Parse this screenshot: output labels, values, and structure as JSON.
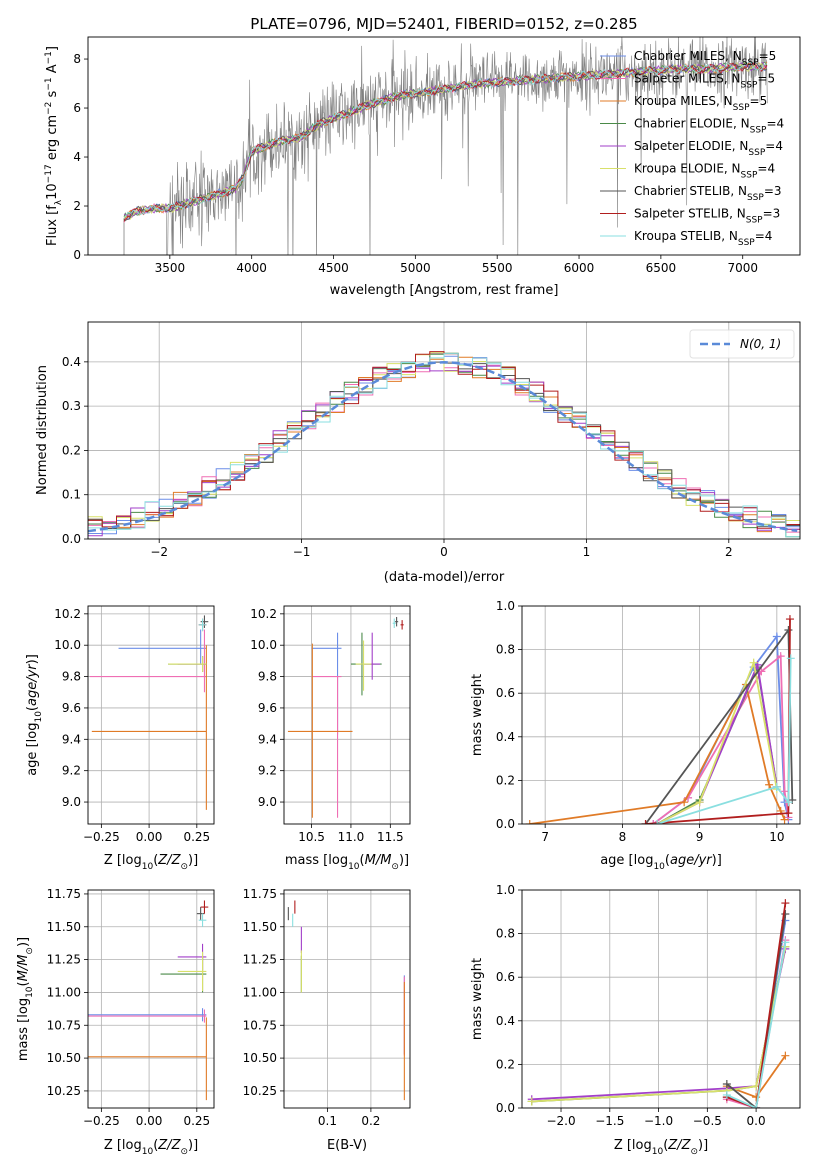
{
  "figure": {
    "title": "PLATE=0796, MJD=52401, FIBERID=0152, z=0.285"
  },
  "colors": {
    "chabrier_miles": "#6c8ee8",
    "salpeter_miles": "#ef6fb4",
    "kroupa_miles": "#e07b27",
    "chabrier_elodie": "#4a8a48",
    "salpeter_elodie": "#a23fc9",
    "kroupa_elodie": "#d8e06a",
    "chabrier_stelib": "#555555",
    "salpeter_stelib": "#b11e1e",
    "kroupa_stelib": "#8adfe0",
    "data_spectrum": "#808080",
    "normal_curve": "#5a8ad8",
    "grid": "#b0b0b0"
  },
  "legend_entries": [
    {
      "label": "Chabrier MILES, N",
      "sub": "SSP",
      "tail": "=5",
      "color_key": "chabrier_miles"
    },
    {
      "label": "Salpeter MILES, N",
      "sub": "SSP",
      "tail": "=5",
      "color_key": "salpeter_miles"
    },
    {
      "label": "Kroupa MILES, N",
      "sub": "SSP",
      "tail": "=5",
      "color_key": "kroupa_miles"
    },
    {
      "label": "Chabrier ELODIE, N",
      "sub": "SSP",
      "tail": "=4",
      "color_key": "chabrier_elodie"
    },
    {
      "label": "Salpeter ELODIE, N",
      "sub": "SSP",
      "tail": "=4",
      "color_key": "salpeter_elodie"
    },
    {
      "label": "Kroupa ELODIE, N",
      "sub": "SSP",
      "tail": "=4",
      "color_key": "kroupa_elodie"
    },
    {
      "label": "Chabrier STELIB, N",
      "sub": "SSP",
      "tail": "=3",
      "color_key": "chabrier_stelib"
    },
    {
      "label": "Salpeter STELIB, N",
      "sub": "SSP",
      "tail": "=3",
      "color_key": "salpeter_stelib"
    },
    {
      "label": "Kroupa STELIB, N",
      "sub": "SSP",
      "tail": "=4",
      "color_key": "kroupa_stelib"
    }
  ],
  "chart_data": [
    {
      "id": "spectrum",
      "type": "line",
      "xlabel": "wavelength [Angstrom, rest frame]",
      "ylabel": "Flux [f_λ 10^-17 erg cm^-2 s^-1 A^-1]",
      "xlim": [
        3000,
        7350
      ],
      "ylim": [
        0,
        8.9
      ],
      "xticks": [
        3500,
        4000,
        4500,
        5000,
        5500,
        6000,
        6500,
        7000
      ],
      "yticks": [
        0,
        2,
        4,
        6,
        8
      ],
      "grid": false,
      "legend_position": "upper-right",
      "model_continuum": {
        "x": [
          3220,
          3300,
          3400,
          3500,
          3600,
          3700,
          3800,
          3900,
          3950,
          4000,
          4100,
          4200,
          4300,
          4400,
          4500,
          4600,
          4700,
          4800,
          4900,
          5000,
          5200,
          5400,
          5600,
          5800,
          6000,
          6200,
          6400,
          6600,
          6800,
          7000,
          7150
        ],
        "y": [
          1.5,
          1.8,
          1.9,
          1.9,
          2.1,
          2.3,
          2.5,
          2.7,
          3.2,
          4.2,
          4.5,
          4.7,
          4.8,
          5.3,
          5.6,
          5.8,
          6.1,
          6.3,
          6.5,
          6.6,
          6.8,
          7.0,
          7.1,
          7.2,
          7.3,
          7.4,
          7.5,
          7.6,
          7.6,
          7.7,
          7.7
        ]
      },
      "data_start_wavelength": 3220
    },
    {
      "id": "residuals",
      "type": "histogram",
      "xlabel": "(data-model)/error",
      "ylabel": "Normed distribution",
      "xlim": [
        -2.5,
        2.5
      ],
      "ylim": [
        0,
        0.49
      ],
      "xticks": [
        -2,
        -1,
        0,
        1,
        2
      ],
      "yticks": [
        0.0,
        0.1,
        0.2,
        0.3,
        0.4
      ],
      "grid": true,
      "legend_position": "upper-right",
      "normal_label": "N(0, 1)",
      "bin_width": 0.1,
      "bins_start": -2.5,
      "bins_count": 50
    },
    {
      "id": "age_vs_Z",
      "type": "errorbar",
      "xlabel": "Z [log10(Z/Z_sun)]",
      "ylabel": "age [log10(age/yr)]",
      "xlim": [
        -0.32,
        0.34
      ],
      "ylim": [
        8.86,
        10.25
      ],
      "xticks": [
        -0.25,
        0.0,
        0.25
      ],
      "yticks": [
        9.0,
        9.2,
        9.4,
        9.6,
        9.8,
        10.0,
        10.2
      ],
      "grid": true,
      "points": [
        {
          "color_key": "chabrier_miles",
          "x": 0.27,
          "y": 9.98,
          "xerr": [
            0.43,
            0.03
          ],
          "yerr": [
            0.1,
            0.12
          ]
        },
        {
          "color_key": "salpeter_miles",
          "x": 0.29,
          "y": 9.8,
          "xerr": [
            0.6,
            0.01
          ],
          "yerr": [
            0.1,
            0.3
          ]
        },
        {
          "color_key": "kroupa_miles",
          "x": 0.3,
          "y": 9.45,
          "xerr": [
            0.6,
            0.0
          ],
          "yerr": [
            0.5,
            0.55
          ]
        },
        {
          "color_key": "chabrier_elodie",
          "x": 0.28,
          "y": 9.88,
          "xerr": [
            0.18,
            0.02
          ],
          "yerr": [
            0.05,
            0.05
          ]
        },
        {
          "color_key": "salpeter_elodie",
          "x": 0.28,
          "y": 9.88,
          "xerr": [
            0.13,
            0.02
          ],
          "yerr": [
            0.05,
            0.05
          ]
        },
        {
          "color_key": "kroupa_elodie",
          "x": 0.28,
          "y": 9.88,
          "xerr": [
            0.18,
            0.02
          ],
          "yerr": [
            0.05,
            0.05
          ]
        },
        {
          "color_key": "chabrier_stelib",
          "x": 0.29,
          "y": 10.15,
          "xerr": [
            0.02,
            0.02
          ],
          "yerr": [
            0.04,
            0.04
          ]
        },
        {
          "color_key": "salpeter_stelib",
          "x": 0.28,
          "y": 10.13,
          "xerr": [
            0.02,
            0.02
          ],
          "yerr": [
            0.04,
            0.04
          ]
        },
        {
          "color_key": "kroupa_stelib",
          "x": 0.28,
          "y": 10.13,
          "xerr": [
            0.02,
            0.02
          ],
          "yerr": [
            0.04,
            0.04
          ]
        }
      ]
    },
    {
      "id": "age_vs_mass",
      "type": "errorbar",
      "xlabel": "mass [log10(M/M_sun)]",
      "ylabel": "",
      "xlim": [
        10.15,
        11.75
      ],
      "ylim": [
        8.86,
        10.25
      ],
      "xticks": [
        10.5,
        11.0,
        11.5
      ],
      "yticks": [
        9.0,
        9.2,
        9.4,
        9.6,
        9.8,
        10.0,
        10.2
      ],
      "grid": true,
      "points": [
        {
          "color_key": "chabrier_miles",
          "x": 10.83,
          "y": 9.98,
          "xerr": [
            0.33,
            0.05
          ],
          "yerr": [
            0.55,
            0.1
          ]
        },
        {
          "color_key": "salpeter_miles",
          "x": 10.83,
          "y": 9.8,
          "xerr": [
            0.33,
            0.05
          ],
          "yerr": [
            0.9,
            0.0
          ]
        },
        {
          "color_key": "kroupa_miles",
          "x": 10.51,
          "y": 9.45,
          "xerr": [
            0.31,
            0.51
          ],
          "yerr": [
            0.55,
            0.56
          ]
        },
        {
          "color_key": "chabrier_elodie",
          "x": 11.14,
          "y": 9.88,
          "xerr": [
            0.14,
            0.25
          ],
          "yerr": [
            0.2,
            0.2
          ]
        },
        {
          "color_key": "salpeter_elodie",
          "x": 11.27,
          "y": 9.88,
          "xerr": [
            0.1,
            0.1
          ],
          "yerr": [
            0.1,
            0.2
          ]
        },
        {
          "color_key": "kroupa_elodie",
          "x": 11.16,
          "y": 9.88,
          "xerr": [
            0.1,
            0.1
          ],
          "yerr": [
            0.17,
            0.15
          ]
        },
        {
          "color_key": "chabrier_stelib",
          "x": 11.58,
          "y": 10.15,
          "xerr": [
            0.02,
            0.02
          ],
          "yerr": [
            0.03,
            0.03
          ]
        },
        {
          "color_key": "salpeter_stelib",
          "x": 11.65,
          "y": 10.13,
          "xerr": [
            0.02,
            0.02
          ],
          "yerr": [
            0.03,
            0.03
          ]
        },
        {
          "color_key": "kroupa_stelib",
          "x": 11.55,
          "y": 10.14,
          "xerr": [
            0.02,
            0.02
          ],
          "yerr": [
            0.03,
            0.03
          ]
        }
      ]
    },
    {
      "id": "mass_weight_vs_age",
      "type": "line",
      "xlabel": "age [log10(age/yr)]",
      "ylabel": "mass weight",
      "xlim": [
        6.7,
        10.3
      ],
      "ylim": [
        0,
        1.0
      ],
      "xticks": [
        7,
        8,
        9,
        10
      ],
      "yticks": [
        0.0,
        0.2,
        0.4,
        0.6,
        0.8,
        1.0
      ],
      "grid": true,
      "series": [
        {
          "color_key": "chabrier_miles",
          "x": [
            8.4,
            8.85,
            9.7,
            10.0,
            10.1,
            10.15
          ],
          "y": [
            0.0,
            0.12,
            0.72,
            0.86,
            0.1,
            0.02
          ]
        },
        {
          "color_key": "salpeter_miles",
          "x": [
            8.4,
            8.85,
            9.8,
            10.05,
            10.1,
            10.15
          ],
          "y": [
            0.0,
            0.12,
            0.7,
            0.77,
            0.15,
            0.03
          ]
        },
        {
          "color_key": "kroupa_miles",
          "x": [
            6.8,
            8.8,
            9.6,
            9.9,
            10.05,
            10.1
          ],
          "y": [
            0.0,
            0.1,
            0.64,
            0.18,
            0.06,
            0.02
          ]
        },
        {
          "color_key": "chabrier_elodie",
          "x": [
            8.45,
            9.0,
            9.75,
            10.0
          ],
          "y": [
            0.0,
            0.11,
            0.72,
            0.17
          ]
        },
        {
          "color_key": "salpeter_elodie",
          "x": [
            8.45,
            9.0,
            9.75,
            10.0
          ],
          "y": [
            0.0,
            0.1,
            0.73,
            0.17
          ]
        },
        {
          "color_key": "kroupa_elodie",
          "x": [
            8.45,
            9.0,
            9.7,
            10.0
          ],
          "y": [
            0.0,
            0.1,
            0.74,
            0.16
          ]
        },
        {
          "color_key": "chabrier_stelib",
          "x": [
            8.3,
            10.15,
            10.2
          ],
          "y": [
            0.0,
            0.89,
            0.11
          ]
        },
        {
          "color_key": "salpeter_stelib",
          "x": [
            8.3,
            10.15,
            10.17
          ],
          "y": [
            0.0,
            0.05,
            0.94
          ]
        },
        {
          "color_key": "kroupa_stelib",
          "x": [
            8.45,
            10.0,
            10.15,
            10.18
          ],
          "y": [
            0.0,
            0.17,
            0.1,
            0.76
          ]
        }
      ]
    },
    {
      "id": "mass_vs_Z",
      "type": "errorbar",
      "xlabel": "Z [log10(Z/Z_sun)]",
      "ylabel": "mass [log10(M/M_sun)]",
      "xlim": [
        -0.32,
        0.34
      ],
      "ylim": [
        10.12,
        11.78
      ],
      "xticks": [
        -0.25,
        0.0,
        0.25
      ],
      "yticks": [
        10.25,
        10.5,
        10.75,
        11.0,
        11.25,
        11.5,
        11.75
      ],
      "grid": true,
      "points": [
        {
          "color_key": "chabrier_miles",
          "x": 0.28,
          "y": 10.83,
          "xerr": [
            0.6,
            0.02
          ],
          "yerr": [
            0.05,
            0.05
          ]
        },
        {
          "color_key": "salpeter_miles",
          "x": 0.29,
          "y": 10.82,
          "xerr": [
            0.61,
            0.01
          ],
          "yerr": [
            0.05,
            0.05
          ]
        },
        {
          "color_key": "kroupa_miles",
          "x": 0.3,
          "y": 10.51,
          "xerr": [
            0.62,
            0.0
          ],
          "yerr": [
            0.33,
            0.3
          ]
        },
        {
          "color_key": "chabrier_elodie",
          "x": 0.28,
          "y": 11.14,
          "xerr": [
            0.22,
            0.02
          ],
          "yerr": [
            0.14,
            0.13
          ]
        },
        {
          "color_key": "salpeter_elodie",
          "x": 0.28,
          "y": 11.27,
          "xerr": [
            0.13,
            0.02
          ],
          "yerr": [
            0.1,
            0.1
          ]
        },
        {
          "color_key": "kroupa_elodie",
          "x": 0.28,
          "y": 11.16,
          "xerr": [
            0.13,
            0.02
          ],
          "yerr": [
            0.15,
            0.15
          ]
        },
        {
          "color_key": "chabrier_stelib",
          "x": 0.27,
          "y": 11.6,
          "xerr": [
            0.02,
            0.02
          ],
          "yerr": [
            0.05,
            0.05
          ]
        },
        {
          "color_key": "salpeter_stelib",
          "x": 0.29,
          "y": 11.65,
          "xerr": [
            0.02,
            0.02
          ],
          "yerr": [
            0.05,
            0.05
          ]
        },
        {
          "color_key": "kroupa_stelib",
          "x": 0.28,
          "y": 11.55,
          "xerr": [
            0.02,
            0.02
          ],
          "yerr": [
            0.05,
            0.05
          ]
        }
      ]
    },
    {
      "id": "mass_vs_ebv",
      "type": "errorbar",
      "xlabel": "E(B-V)",
      "ylabel": "",
      "xlim": [
        0.0,
        0.29
      ],
      "ylim": [
        10.12,
        11.78
      ],
      "xticks": [
        0.1,
        0.2
      ],
      "yticks": [
        10.25,
        10.5,
        10.75,
        11.0,
        11.25,
        11.5,
        11.75
      ],
      "grid": true,
      "points": [
        {
          "color_key": "chabrier_miles",
          "x": 0.277,
          "y": 10.83,
          "xerr": [
            0.0,
            0.0
          ],
          "yerr": [
            0.3,
            0.3
          ]
        },
        {
          "color_key": "salpeter_miles",
          "x": 0.277,
          "y": 10.82,
          "xerr": [
            0.0,
            0.0
          ],
          "yerr": [
            0.3,
            0.3
          ]
        },
        {
          "color_key": "kroupa_miles",
          "x": 0.277,
          "y": 10.63,
          "xerr": [
            0.0,
            0.0
          ],
          "yerr": [
            0.45,
            0.45
          ]
        },
        {
          "color_key": "chabrier_elodie",
          "x": 0.04,
          "y": 11.14,
          "xerr": [
            0.0,
            0.0
          ],
          "yerr": [
            0.14,
            0.14
          ]
        },
        {
          "color_key": "salpeter_elodie",
          "x": 0.04,
          "y": 11.4,
          "xerr": [
            0.0,
            0.0
          ],
          "yerr": [
            0.1,
            0.1
          ]
        },
        {
          "color_key": "kroupa_elodie",
          "x": 0.04,
          "y": 11.16,
          "xerr": [
            0.0,
            0.0
          ],
          "yerr": [
            0.16,
            0.16
          ]
        },
        {
          "color_key": "chabrier_stelib",
          "x": 0.01,
          "y": 11.6,
          "xerr": [
            0.0,
            0.0
          ],
          "yerr": [
            0.05,
            0.05
          ]
        },
        {
          "color_key": "salpeter_stelib",
          "x": 0.025,
          "y": 11.65,
          "xerr": [
            0.0,
            0.0
          ],
          "yerr": [
            0.05,
            0.05
          ]
        },
        {
          "color_key": "kroupa_stelib",
          "x": 0.02,
          "y": 11.55,
          "xerr": [
            0.0,
            0.0
          ],
          "yerr": [
            0.05,
            0.05
          ]
        }
      ]
    },
    {
      "id": "mass_weight_vs_Z",
      "type": "line",
      "xlabel": "Z [log10(Z/Z_sun)]",
      "ylabel": "mass weight",
      "xlim": [
        -2.4,
        0.45
      ],
      "ylim": [
        0,
        1.0
      ],
      "xticks": [
        -2.0,
        -1.5,
        -1.0,
        -0.5,
        0.0
      ],
      "yticks": [
        0.0,
        0.2,
        0.4,
        0.6,
        0.8,
        1.0
      ],
      "grid": true,
      "series": [
        {
          "color_key": "chabrier_miles",
          "x": [
            -0.3,
            0.0,
            0.3
          ],
          "y": [
            0.05,
            0.0,
            0.86
          ]
        },
        {
          "color_key": "salpeter_miles",
          "x": [
            -0.3,
            0.0,
            0.3
          ],
          "y": [
            0.04,
            0.0,
            0.77
          ]
        },
        {
          "color_key": "kroupa_miles",
          "x": [
            -0.3,
            0.0,
            0.3
          ],
          "y": [
            0.1,
            0.05,
            0.24
          ]
        },
        {
          "color_key": "chabrier_elodie",
          "x": [
            -2.3,
            -0.3,
            0.0,
            0.3
          ],
          "y": [
            0.03,
            0.08,
            0.1,
            0.74
          ]
        },
        {
          "color_key": "salpeter_elodie",
          "x": [
            -2.3,
            -0.3,
            0.0,
            0.3
          ],
          "y": [
            0.04,
            0.09,
            0.1,
            0.73
          ]
        },
        {
          "color_key": "kroupa_elodie",
          "x": [
            -2.3,
            -0.3,
            0.0,
            0.3
          ],
          "y": [
            0.03,
            0.08,
            0.1,
            0.74
          ]
        },
        {
          "color_key": "chabrier_stelib",
          "x": [
            -0.3,
            0.0,
            0.3
          ],
          "y": [
            0.11,
            0.0,
            0.89
          ]
        },
        {
          "color_key": "salpeter_stelib",
          "x": [
            -0.3,
            0.0,
            0.3
          ],
          "y": [
            0.05,
            0.0,
            0.94
          ]
        },
        {
          "color_key": "kroupa_stelib",
          "x": [
            -0.3,
            0.0,
            0.3
          ],
          "y": [
            0.06,
            0.0,
            0.76
          ]
        }
      ]
    }
  ]
}
